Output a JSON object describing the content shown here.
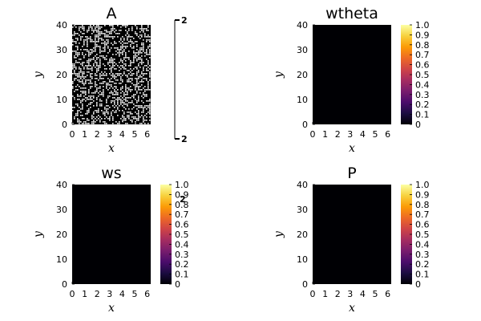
{
  "chart_data": [
    {
      "type": "heatmap",
      "title": "A",
      "xlabel": "x",
      "ylabel": "y",
      "xlim": [
        0,
        6.283
      ],
      "ylim": [
        0,
        40
      ],
      "xticks": [
        "0",
        "1",
        "2",
        "3",
        "4",
        "5",
        "6"
      ],
      "yticks": [
        "0",
        "10",
        "20",
        "30",
        "40"
      ],
      "values_description_free": true,
      "values": "binary-noise",
      "colorbar": {
        "type": "single-value",
        "tick_labels": [
          "2",
          "2"
        ]
      }
    },
    {
      "type": "heatmap",
      "title": "wtheta",
      "xlabel": "x",
      "ylabel": "y",
      "xlim": [
        0,
        6.283
      ],
      "ylim": [
        0,
        40
      ],
      "xticks": [
        "0",
        "1",
        "2",
        "3",
        "4",
        "5",
        "6"
      ],
      "yticks": [
        "0",
        "10",
        "20",
        "30",
        "40"
      ],
      "values": "all-zero",
      "colorbar": {
        "type": "inferno",
        "clim": [
          0,
          1
        ],
        "tick_labels": [
          "0",
          "0.1",
          "0.2",
          "0.3",
          "0.4",
          "0.5",
          "0.6",
          "0.7",
          "0.8",
          "0.9",
          "1.0"
        ]
      }
    },
    {
      "type": "heatmap",
      "title": "ws",
      "xlabel": "x",
      "ylabel": "y",
      "xlim": [
        0,
        6.283
      ],
      "ylim": [
        0,
        40
      ],
      "xticks": [
        "0",
        "1",
        "2",
        "3",
        "4",
        "5",
        "6"
      ],
      "yticks": [
        "0",
        "10",
        "20",
        "30",
        "40"
      ],
      "values": "all-zero",
      "colorbar": {
        "type": "inferno",
        "clim": [
          0,
          1
        ],
        "tick_labels": [
          "0",
          "0.1",
          "0.2",
          "0.3",
          "0.4",
          "0.5",
          "0.6",
          "0.7",
          "0.8",
          "0.9",
          "1.0"
        ]
      }
    },
    {
      "type": "heatmap",
      "title": "P",
      "xlabel": "x",
      "ylabel": "y",
      "xlim": [
        0,
        6.283
      ],
      "ylim": [
        0,
        40
      ],
      "xticks": [
        "0",
        "1",
        "2",
        "3",
        "4",
        "5",
        "6"
      ],
      "yticks": [
        "0",
        "10",
        "20",
        "30",
        "40"
      ],
      "values": "all-zero",
      "colorbar": {
        "type": "inferno",
        "clim": [
          0,
          1
        ],
        "tick_labels": [
          "0",
          "0.1",
          "0.2",
          "0.3",
          "0.4",
          "0.5",
          "0.6",
          "0.7",
          "0.8",
          "0.9",
          "1.0"
        ]
      }
    }
  ],
  "stray_label": "2",
  "colors": {
    "heatmap_zero": "#000004",
    "inferno": [
      "#000004",
      "#1b0c41",
      "#4a0c6b",
      "#781c6d",
      "#a52c60",
      "#cf4446",
      "#ed6925",
      "#fb9b06",
      "#f7d13d",
      "#fcffa4"
    ],
    "noise_on": "#ffffff",
    "noise_off": "#000000"
  }
}
